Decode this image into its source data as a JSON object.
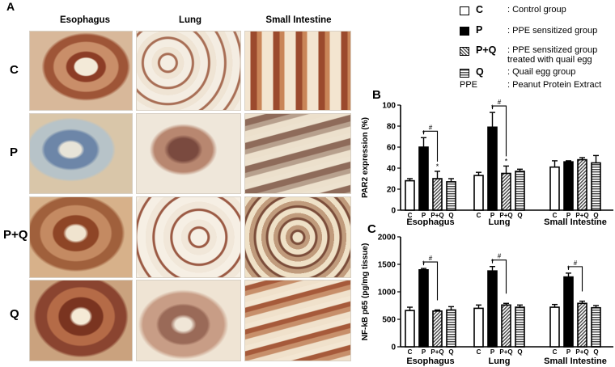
{
  "panel_a": {
    "letter": "A",
    "columns": [
      "Esophagus",
      "Lung",
      "Small Intestine"
    ],
    "rows": [
      "C",
      "P",
      "P+Q",
      "Q"
    ]
  },
  "legend": {
    "items": [
      {
        "code": "C",
        "text": ": Control group",
        "fill": "white"
      },
      {
        "code": "P",
        "text": ": PPE sensitized group",
        "fill": "black"
      },
      {
        "code": "P+Q",
        "text": ": PPE sensitized group",
        "text2": "treated with quail egg",
        "fill": "diag"
      },
      {
        "code": "Q",
        "text": ": Quail egg group",
        "fill": "horiz"
      }
    ],
    "abbr": {
      "code": "PPE",
      "text": ": Peanut Protein Extract"
    }
  },
  "chart_data": [
    {
      "panel": "B",
      "type": "bar",
      "ylabel": "PAR2 expression (%)",
      "ylim": [
        0,
        100
      ],
      "yticks": [
        "0",
        "20",
        "40",
        "60",
        "80",
        "100"
      ],
      "bar_labels": [
        "C",
        "P",
        "P+Q",
        "Q"
      ],
      "group_labels": [],
      "groups": [
        {
          "name": "Esophagus",
          "values": [
            28,
            60,
            30,
            27
          ],
          "errors": [
            2,
            9,
            7,
            3
          ],
          "stars": [
            "",
            "*",
            "*",
            ""
          ],
          "hash": "#"
        },
        {
          "name": "Lung",
          "values": [
            33,
            79,
            35,
            37
          ],
          "errors": [
            3,
            14,
            7,
            2
          ],
          "stars": [
            "",
            "*",
            "*",
            ""
          ],
          "hash": "#"
        },
        {
          "name": "Small Intestine",
          "values": [
            41,
            46,
            48,
            45
          ],
          "errors": [
            6,
            1,
            2,
            7
          ],
          "stars": [
            "",
            "",
            "",
            ""
          ],
          "hash": ""
        }
      ],
      "inline_group_labels": [
        "Esophagus",
        "Lung",
        "Small Intestine"
      ]
    },
    {
      "panel": "C",
      "type": "bar",
      "ylabel": "NF-kB p65 (pg/mg tissue)",
      "ylim": [
        0,
        2000
      ],
      "yticks": [
        "0",
        "500",
        "1000",
        "1500",
        "2000"
      ],
      "bar_labels": [
        "C",
        "P",
        "P+Q",
        "Q"
      ],
      "groups": [
        {
          "name": "Esophagus",
          "values": [
            660,
            1400,
            650,
            670
          ],
          "errors": [
            60,
            25,
            20,
            60
          ],
          "stars": [
            "",
            "*",
            "",
            ""
          ],
          "hash": "#"
        },
        {
          "name": "Lung",
          "values": [
            700,
            1380,
            760,
            720
          ],
          "errors": [
            60,
            80,
            30,
            40
          ],
          "stars": [
            "",
            "*",
            "",
            ""
          ],
          "hash": "#"
        },
        {
          "name": "Small Intestine",
          "values": [
            720,
            1270,
            790,
            710
          ],
          "errors": [
            50,
            70,
            40,
            40
          ],
          "stars": [
            "",
            "*",
            "",
            ""
          ],
          "hash": "#"
        }
      ],
      "bottom_group_labels": [
        "Esophagus",
        "Lung",
        "Small Intestine"
      ]
    }
  ]
}
